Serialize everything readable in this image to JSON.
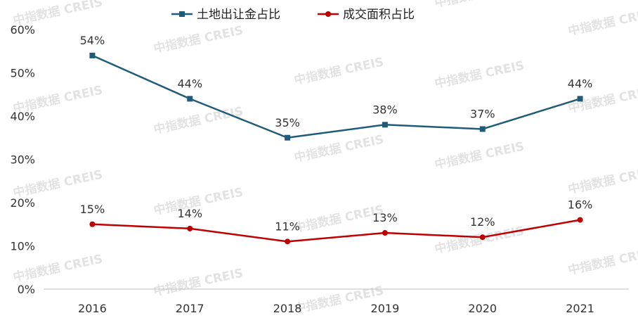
{
  "chart_data": {
    "type": "line",
    "title": "",
    "xlabel": "",
    "ylabel": "",
    "categories": [
      "2016",
      "2017",
      "2018",
      "2019",
      "2020",
      "2021"
    ],
    "ylim": [
      0,
      60
    ],
    "yticks": [
      "0%",
      "10%",
      "20%",
      "30%",
      "40%",
      "50%",
      "60%"
    ],
    "legend_position": "top-center",
    "grid": false,
    "series": [
      {
        "name": "土地出让金占比",
        "color": "#1f5c7a",
        "marker": "square",
        "values": [
          54,
          44,
          35,
          38,
          37,
          44
        ],
        "labels": [
          "54%",
          "44%",
          "35%",
          "38%",
          "37%",
          "44%"
        ]
      },
      {
        "name": "成交面积占比",
        "color": "#c00000",
        "marker": "circle",
        "values": [
          15,
          14,
          11,
          13,
          12,
          16
        ],
        "labels": [
          "15%",
          "14%",
          "11%",
          "13%",
          "12%",
          "16%"
        ]
      }
    ]
  },
  "watermark": "中指数据 CREIS"
}
